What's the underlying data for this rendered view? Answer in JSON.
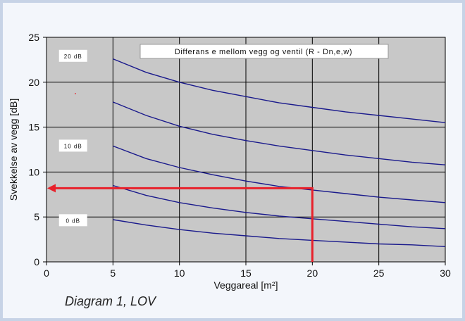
{
  "chart_data": {
    "type": "line",
    "title": "Differans e mellom vegg og ventil (R - Dn,e,w)",
    "xlabel": "Veggareal [m²]",
    "ylabel": "Svekkelse av vegg [dB]",
    "xlim": [
      0,
      30
    ],
    "ylim": [
      0,
      25
    ],
    "x_ticks": [
      "0",
      "5",
      "10",
      "15",
      "20",
      "25",
      "30"
    ],
    "y_ticks": [
      "0",
      "5",
      "10",
      "15",
      "20",
      "25"
    ],
    "grid": true,
    "series": [
      {
        "x": [
          5,
          7.5,
          10,
          12.5,
          15,
          17.5,
          20,
          22.5,
          25,
          27.5,
          30
        ],
        "y": [
          22.6,
          21.1,
          20.0,
          19.1,
          18.4,
          17.7,
          17.2,
          16.7,
          16.3,
          15.9,
          15.5
        ]
      },
      {
        "x": [
          5,
          7.5,
          10,
          12.5,
          15,
          17.5,
          20,
          22.5,
          25,
          27.5,
          30
        ],
        "y": [
          17.8,
          16.3,
          15.1,
          14.2,
          13.5,
          12.9,
          12.4,
          11.9,
          11.5,
          11.1,
          10.8
        ]
      },
      {
        "x": [
          5,
          7.5,
          10,
          12.5,
          15,
          17.5,
          20,
          22.5,
          25,
          27.5,
          30
        ],
        "y": [
          12.9,
          11.5,
          10.5,
          9.7,
          9.0,
          8.4,
          8.0,
          7.6,
          7.2,
          6.9,
          6.6
        ]
      },
      {
        "x": [
          5,
          7.5,
          10,
          12.5,
          15,
          17.5,
          20,
          22.5,
          25,
          27.5,
          30
        ],
        "y": [
          8.5,
          7.4,
          6.6,
          6.0,
          5.5,
          5.1,
          4.8,
          4.5,
          4.2,
          3.9,
          3.7
        ]
      },
      {
        "x": [
          5,
          7.5,
          10,
          12.5,
          15,
          17.5,
          20,
          22.5,
          25,
          27.5,
          30
        ],
        "y": [
          4.7,
          4.1,
          3.6,
          3.2,
          2.9,
          2.6,
          2.4,
          2.2,
          2.0,
          1.9,
          1.7
        ]
      }
    ],
    "curve_labels": [
      {
        "text": "20 dB",
        "x": 2.0,
        "y": 22.9
      },
      {
        "text": "10 dB",
        "x": 2.0,
        "y": 12.9
      },
      {
        "text": "0 dB",
        "x": 2.0,
        "y": 4.6
      }
    ],
    "annotation_arrow": {
      "from_x": 20,
      "from_y": 0,
      "corner_x": 20,
      "corner_y": 8.2,
      "to_x": 0,
      "to_y": 8.2
    },
    "colors": {
      "plot_background": "#c8c8c8",
      "series_line": "#1a1a8c",
      "arrow": "#e8202a",
      "grid": "#000000"
    }
  },
  "caption": "Diagram 1, LOV"
}
